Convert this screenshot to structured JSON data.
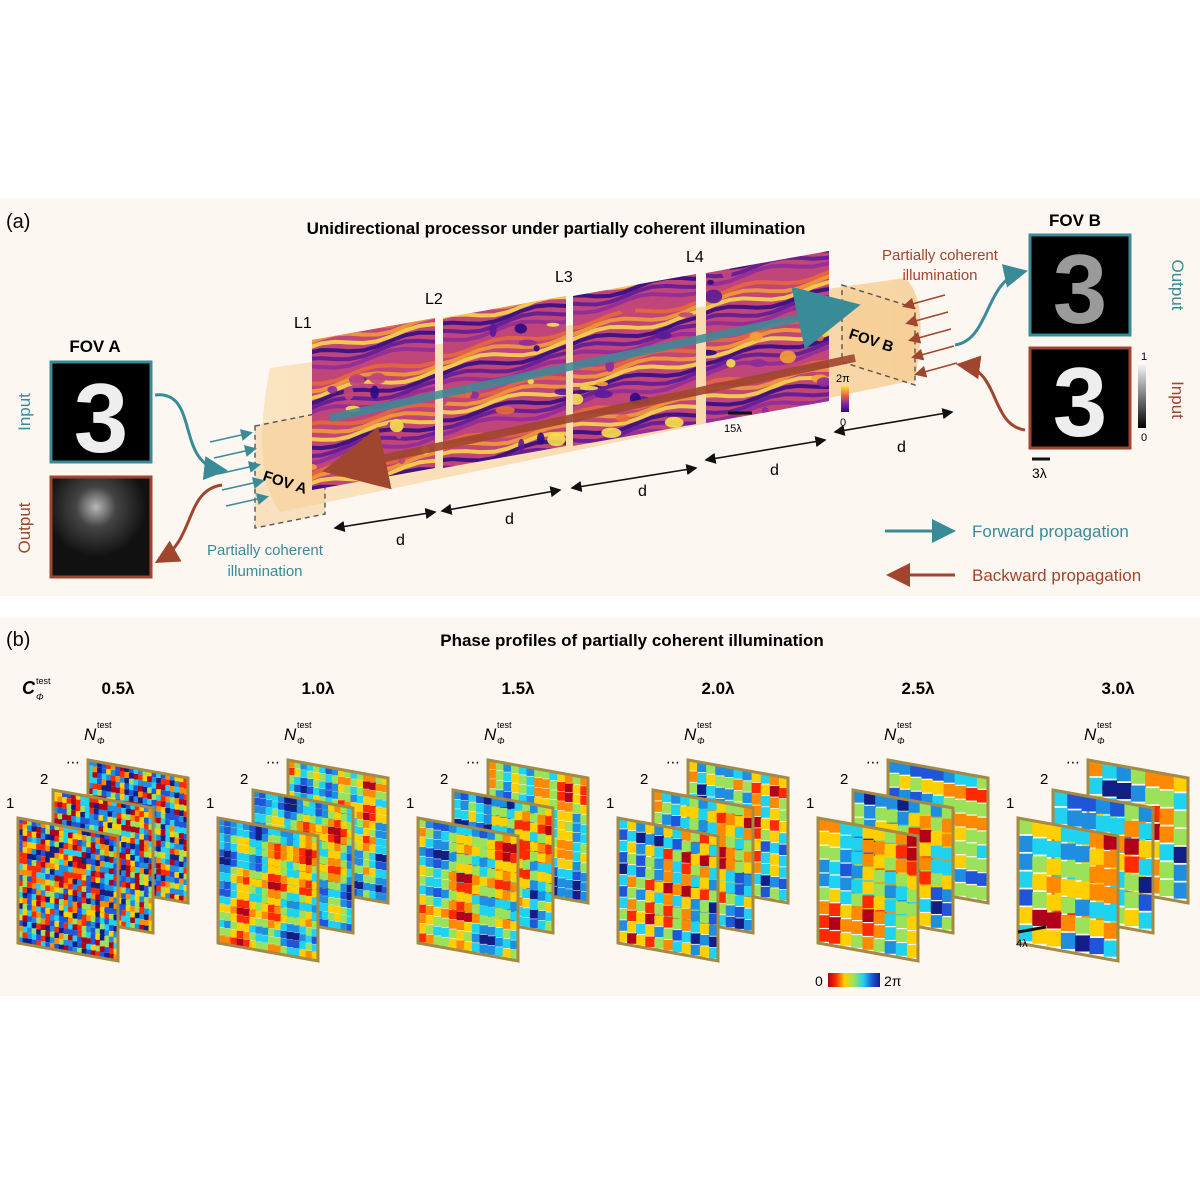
{
  "panel_a": {
    "tag": "(a)",
    "title": "Unidirectional processor under partially coherent illumination",
    "layers": [
      "L1",
      "L2",
      "L3",
      "L4"
    ],
    "fov_a": "FOV A",
    "fov_b": "FOV B",
    "fov_a_header": "FOV A",
    "fov_b_header": "FOV B",
    "input": "Input",
    "output": "Output",
    "input_right": "Input",
    "output_left": "Output",
    "pci_left": [
      "Partially coherent",
      "illumination"
    ],
    "pci_right": [
      "Partially coherent",
      "illumination"
    ],
    "distance": "d",
    "scale_15": "15λ",
    "scale_3": "3λ",
    "phase_bar": {
      "top": "2π",
      "bottom": "0"
    },
    "gray_bar": {
      "top": "1",
      "bottom": "0"
    },
    "legend_forward": "Forward propagation",
    "legend_backward": "Backward propagation",
    "digit": "3",
    "colors": {
      "forward": "#3a8b98",
      "backward": "#a0452e",
      "beam": "#f9d9a8"
    }
  },
  "panel_b": {
    "tag": "(b)",
    "title": "Phase profiles of partially coherent  illumination",
    "row_label": "C",
    "row_label_sub": "Φ",
    "row_label_sup": "test",
    "n_label": "N",
    "n_sub": "Φ",
    "n_sup": "test",
    "index_1": "1",
    "index_2": "2",
    "dots": "⋯",
    "columns": [
      "0.5λ",
      "1.0λ",
      "1.5λ",
      "2.0λ",
      "2.5λ",
      "3.0λ"
    ],
    "scale": "4λ",
    "colorbar": {
      "min": "0",
      "max": "2π"
    }
  }
}
